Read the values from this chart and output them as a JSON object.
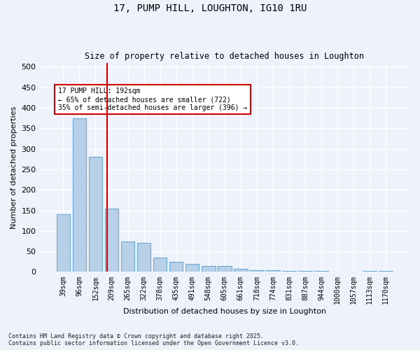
{
  "title": "17, PUMP HILL, LOUGHTON, IG10 1RU",
  "subtitle": "Size of property relative to detached houses in Loughton",
  "xlabel": "Distribution of detached houses by size in Loughton",
  "ylabel": "Number of detached properties",
  "bar_color": "#b8d0e8",
  "bar_edge_color": "#6aaad4",
  "background_color": "#eef2fa",
  "grid_color": "#ffffff",
  "bins": [
    "39sqm",
    "96sqm",
    "152sqm",
    "209sqm",
    "265sqm",
    "322sqm",
    "378sqm",
    "435sqm",
    "491sqm",
    "548sqm",
    "605sqm",
    "661sqm",
    "718sqm",
    "774sqm",
    "831sqm",
    "887sqm",
    "944sqm",
    "1000sqm",
    "1057sqm",
    "1113sqm",
    "1170sqm"
  ],
  "values": [
    140,
    375,
    280,
    155,
    75,
    70,
    35,
    25,
    20,
    15,
    15,
    7,
    5,
    5,
    3,
    3,
    3,
    0,
    0,
    3,
    2
  ],
  "vline_color": "#cc0000",
  "annotation_text": "17 PUMP HILL: 192sqm\n← 65% of detached houses are smaller (722)\n35% of semi-detached houses are larger (396) →",
  "annotation_box_color": "#ffffff",
  "annotation_box_edge": "#cc0000",
  "footer": "Contains HM Land Registry data © Crown copyright and database right 2025.\nContains public sector information licensed under the Open Government Licence v3.0.",
  "ylim": [
    0,
    510
  ],
  "yticks": [
    0,
    50,
    100,
    150,
    200,
    250,
    300,
    350,
    400,
    450,
    500
  ]
}
